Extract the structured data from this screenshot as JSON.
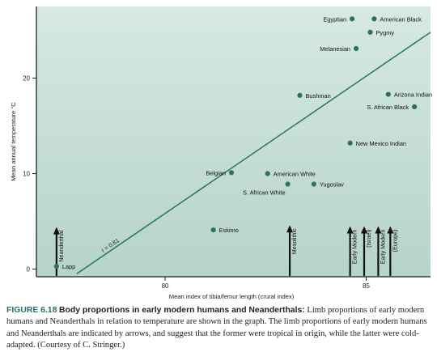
{
  "caption": {
    "label": "FIGURE 6.18",
    "title": "Body proportions in early modern humans and Neanderthals:",
    "text": "Limb proportions of early modern humans and Neanderthals in relation to temperature are shown in the graph. The limb proportions of early modern humans and Neanderthals are indicated by arrows, and suggest that the former were tropical in origin, while the latter were cold-adapted. (Courtesy of C. Stringer.)"
  },
  "colors": {
    "background_top": "#d6e9e2",
    "background_bottom": "#b6d4c8",
    "marker": "#2f6f60",
    "line": "#2f7a64",
    "axis": "#1f1f1f",
    "caption_label": "#2a6f6a"
  },
  "chart_data": {
    "type": "scatter",
    "title": "",
    "xlabel": "Mean index of tibia/femur length (crural index)",
    "ylabel": "Mean annual temperature °C",
    "xlim": [
      76.8,
      86.6
    ],
    "ylim": [
      -0.8,
      27.5
    ],
    "x_ticks": [
      80,
      85
    ],
    "y_ticks": [
      0,
      10,
      20
    ],
    "grid": false,
    "legend": "none",
    "points": [
      {
        "label": "Egyptian",
        "x": 84.65,
        "y": 26.2,
        "label_side": "left"
      },
      {
        "label": "American Black",
        "x": 85.2,
        "y": 26.2,
        "label_side": "right"
      },
      {
        "label": "Pygmy",
        "x": 85.1,
        "y": 24.8,
        "label_side": "right"
      },
      {
        "label": "Melanesian",
        "x": 84.75,
        "y": 23.1,
        "label_side": "left"
      },
      {
        "label": "Bushman",
        "x": 83.35,
        "y": 18.2,
        "label_side": "right"
      },
      {
        "label": "Arizona Indian",
        "x": 85.55,
        "y": 18.3,
        "label_side": "right"
      },
      {
        "label": "S. African Black",
        "x": 86.2,
        "y": 17.0,
        "label_side": "left"
      },
      {
        "label": "New Mexico Indian",
        "x": 84.6,
        "y": 13.2,
        "label_side": "right"
      },
      {
        "label": "Belgian",
        "x": 81.65,
        "y": 10.1,
        "label_side": "left"
      },
      {
        "label": "American White",
        "x": 82.55,
        "y": 10.0,
        "label_side": "right"
      },
      {
        "label": "S. African White",
        "x": 83.05,
        "y": 8.9,
        "label_side": "below-left"
      },
      {
        "label": "Yugoslav",
        "x": 83.7,
        "y": 8.9,
        "label_side": "right"
      },
      {
        "label": "Eskimo",
        "x": 81.2,
        "y": 4.1,
        "label_side": "right"
      },
      {
        "label": "Lapp",
        "x": 77.3,
        "y": 0.3,
        "label_side": "right"
      }
    ],
    "regression": {
      "label": "r = 0.81",
      "x": [
        77.8,
        86.6
      ],
      "y": [
        -0.5,
        24.8
      ]
    },
    "arrows": [
      {
        "label": "Neanderthal",
        "x": 77.3,
        "top": 4.4
      },
      {
        "label": "Mesolithic",
        "x": 83.1,
        "top": 4.6
      },
      {
        "label": "Early Modern",
        "x": 84.6,
        "top": 4.5
      },
      {
        "label": "(Israel)",
        "x": 84.95,
        "top": 4.5
      },
      {
        "label": "Early Modern",
        "x": 85.3,
        "top": 4.5
      },
      {
        "label": "(Europe)",
        "x": 85.6,
        "top": 4.5
      }
    ]
  }
}
